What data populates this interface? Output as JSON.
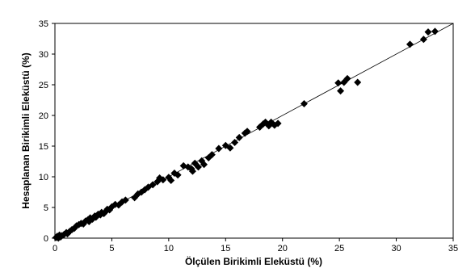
{
  "chart_data": {
    "type": "scatter",
    "title": "",
    "xlabel": "Ölçülen Birikimli Eleküstü (%)",
    "ylabel": "Hesaplanan Birikimli Eleküstü (%)",
    "xlim": [
      0,
      35
    ],
    "ylim": [
      0,
      35
    ],
    "x_ticks": [
      "0",
      "5",
      "10",
      "15",
      "20",
      "25",
      "30",
      "35"
    ],
    "y_ticks": [
      "0",
      "5",
      "10",
      "15",
      "20",
      "25",
      "30",
      "35"
    ],
    "grid": false,
    "legend": "none",
    "marker": "diamond",
    "marker_color": "#000000",
    "reference_line": {
      "label": "",
      "from": [
        0,
        0
      ],
      "to": [
        35,
        35
      ],
      "color": "#000000"
    },
    "series": [
      {
        "points": [
          [
            0.1,
            0.1
          ],
          [
            0.2,
            0.3
          ],
          [
            0.3,
            0.0
          ],
          [
            0.4,
            0.5
          ],
          [
            0.5,
            0.2
          ],
          [
            0.6,
            0.4
          ],
          [
            0.8,
            0.6
          ],
          [
            1.0,
            0.9
          ],
          [
            1.1,
            0.7
          ],
          [
            1.3,
            1.1
          ],
          [
            1.5,
            1.4
          ],
          [
            1.7,
            1.6
          ],
          [
            1.9,
            2.0
          ],
          [
            2.1,
            2.2
          ],
          [
            2.3,
            2.4
          ],
          [
            2.5,
            2.3
          ],
          [
            2.7,
            2.8
          ],
          [
            2.9,
            3.0
          ],
          [
            3.0,
            2.7
          ],
          [
            3.1,
            3.3
          ],
          [
            3.3,
            3.1
          ],
          [
            3.5,
            3.6
          ],
          [
            3.6,
            3.4
          ],
          [
            3.8,
            3.9
          ],
          [
            4.0,
            3.8
          ],
          [
            4.1,
            4.2
          ],
          [
            4.3,
            4.0
          ],
          [
            4.5,
            4.4
          ],
          [
            4.6,
            4.7
          ],
          [
            4.8,
            4.6
          ],
          [
            5.0,
            5.1
          ],
          [
            5.3,
            5.5
          ],
          [
            5.6,
            5.4
          ],
          [
            5.9,
            5.9
          ],
          [
            6.2,
            6.2
          ],
          [
            7.0,
            6.6
          ],
          [
            7.3,
            7.2
          ],
          [
            7.6,
            7.5
          ],
          [
            7.9,
            7.9
          ],
          [
            8.2,
            8.3
          ],
          [
            8.6,
            8.7
          ],
          [
            9.0,
            9.2
          ],
          [
            9.2,
            9.8
          ],
          [
            9.5,
            9.5
          ],
          [
            10.0,
            9.9
          ],
          [
            10.2,
            9.4
          ],
          [
            10.5,
            10.6
          ],
          [
            10.8,
            10.3
          ],
          [
            11.3,
            11.8
          ],
          [
            11.7,
            11.6
          ],
          [
            12.0,
            11.3
          ],
          [
            12.1,
            10.9
          ],
          [
            12.3,
            12.2
          ],
          [
            12.6,
            11.6
          ],
          [
            12.9,
            12.6
          ],
          [
            13.1,
            12.0
          ],
          [
            13.5,
            13.1
          ],
          [
            13.8,
            13.6
          ],
          [
            14.4,
            14.6
          ],
          [
            15.0,
            15.1
          ],
          [
            15.4,
            14.7
          ],
          [
            15.8,
            15.6
          ],
          [
            16.2,
            16.4
          ],
          [
            16.7,
            17.1
          ],
          [
            16.9,
            17.4
          ],
          [
            18.0,
            18.1
          ],
          [
            18.3,
            18.6
          ],
          [
            18.5,
            18.9
          ],
          [
            18.8,
            18.3
          ],
          [
            19.0,
            18.9
          ],
          [
            19.3,
            18.4
          ],
          [
            19.6,
            18.7
          ],
          [
            21.9,
            21.9
          ],
          [
            24.9,
            25.3
          ],
          [
            25.1,
            24.0
          ],
          [
            25.4,
            25.4
          ],
          [
            25.7,
            26.0
          ],
          [
            26.6,
            25.4
          ],
          [
            31.2,
            31.6
          ],
          [
            32.4,
            32.4
          ],
          [
            32.8,
            33.6
          ],
          [
            33.4,
            33.7
          ]
        ]
      }
    ]
  }
}
